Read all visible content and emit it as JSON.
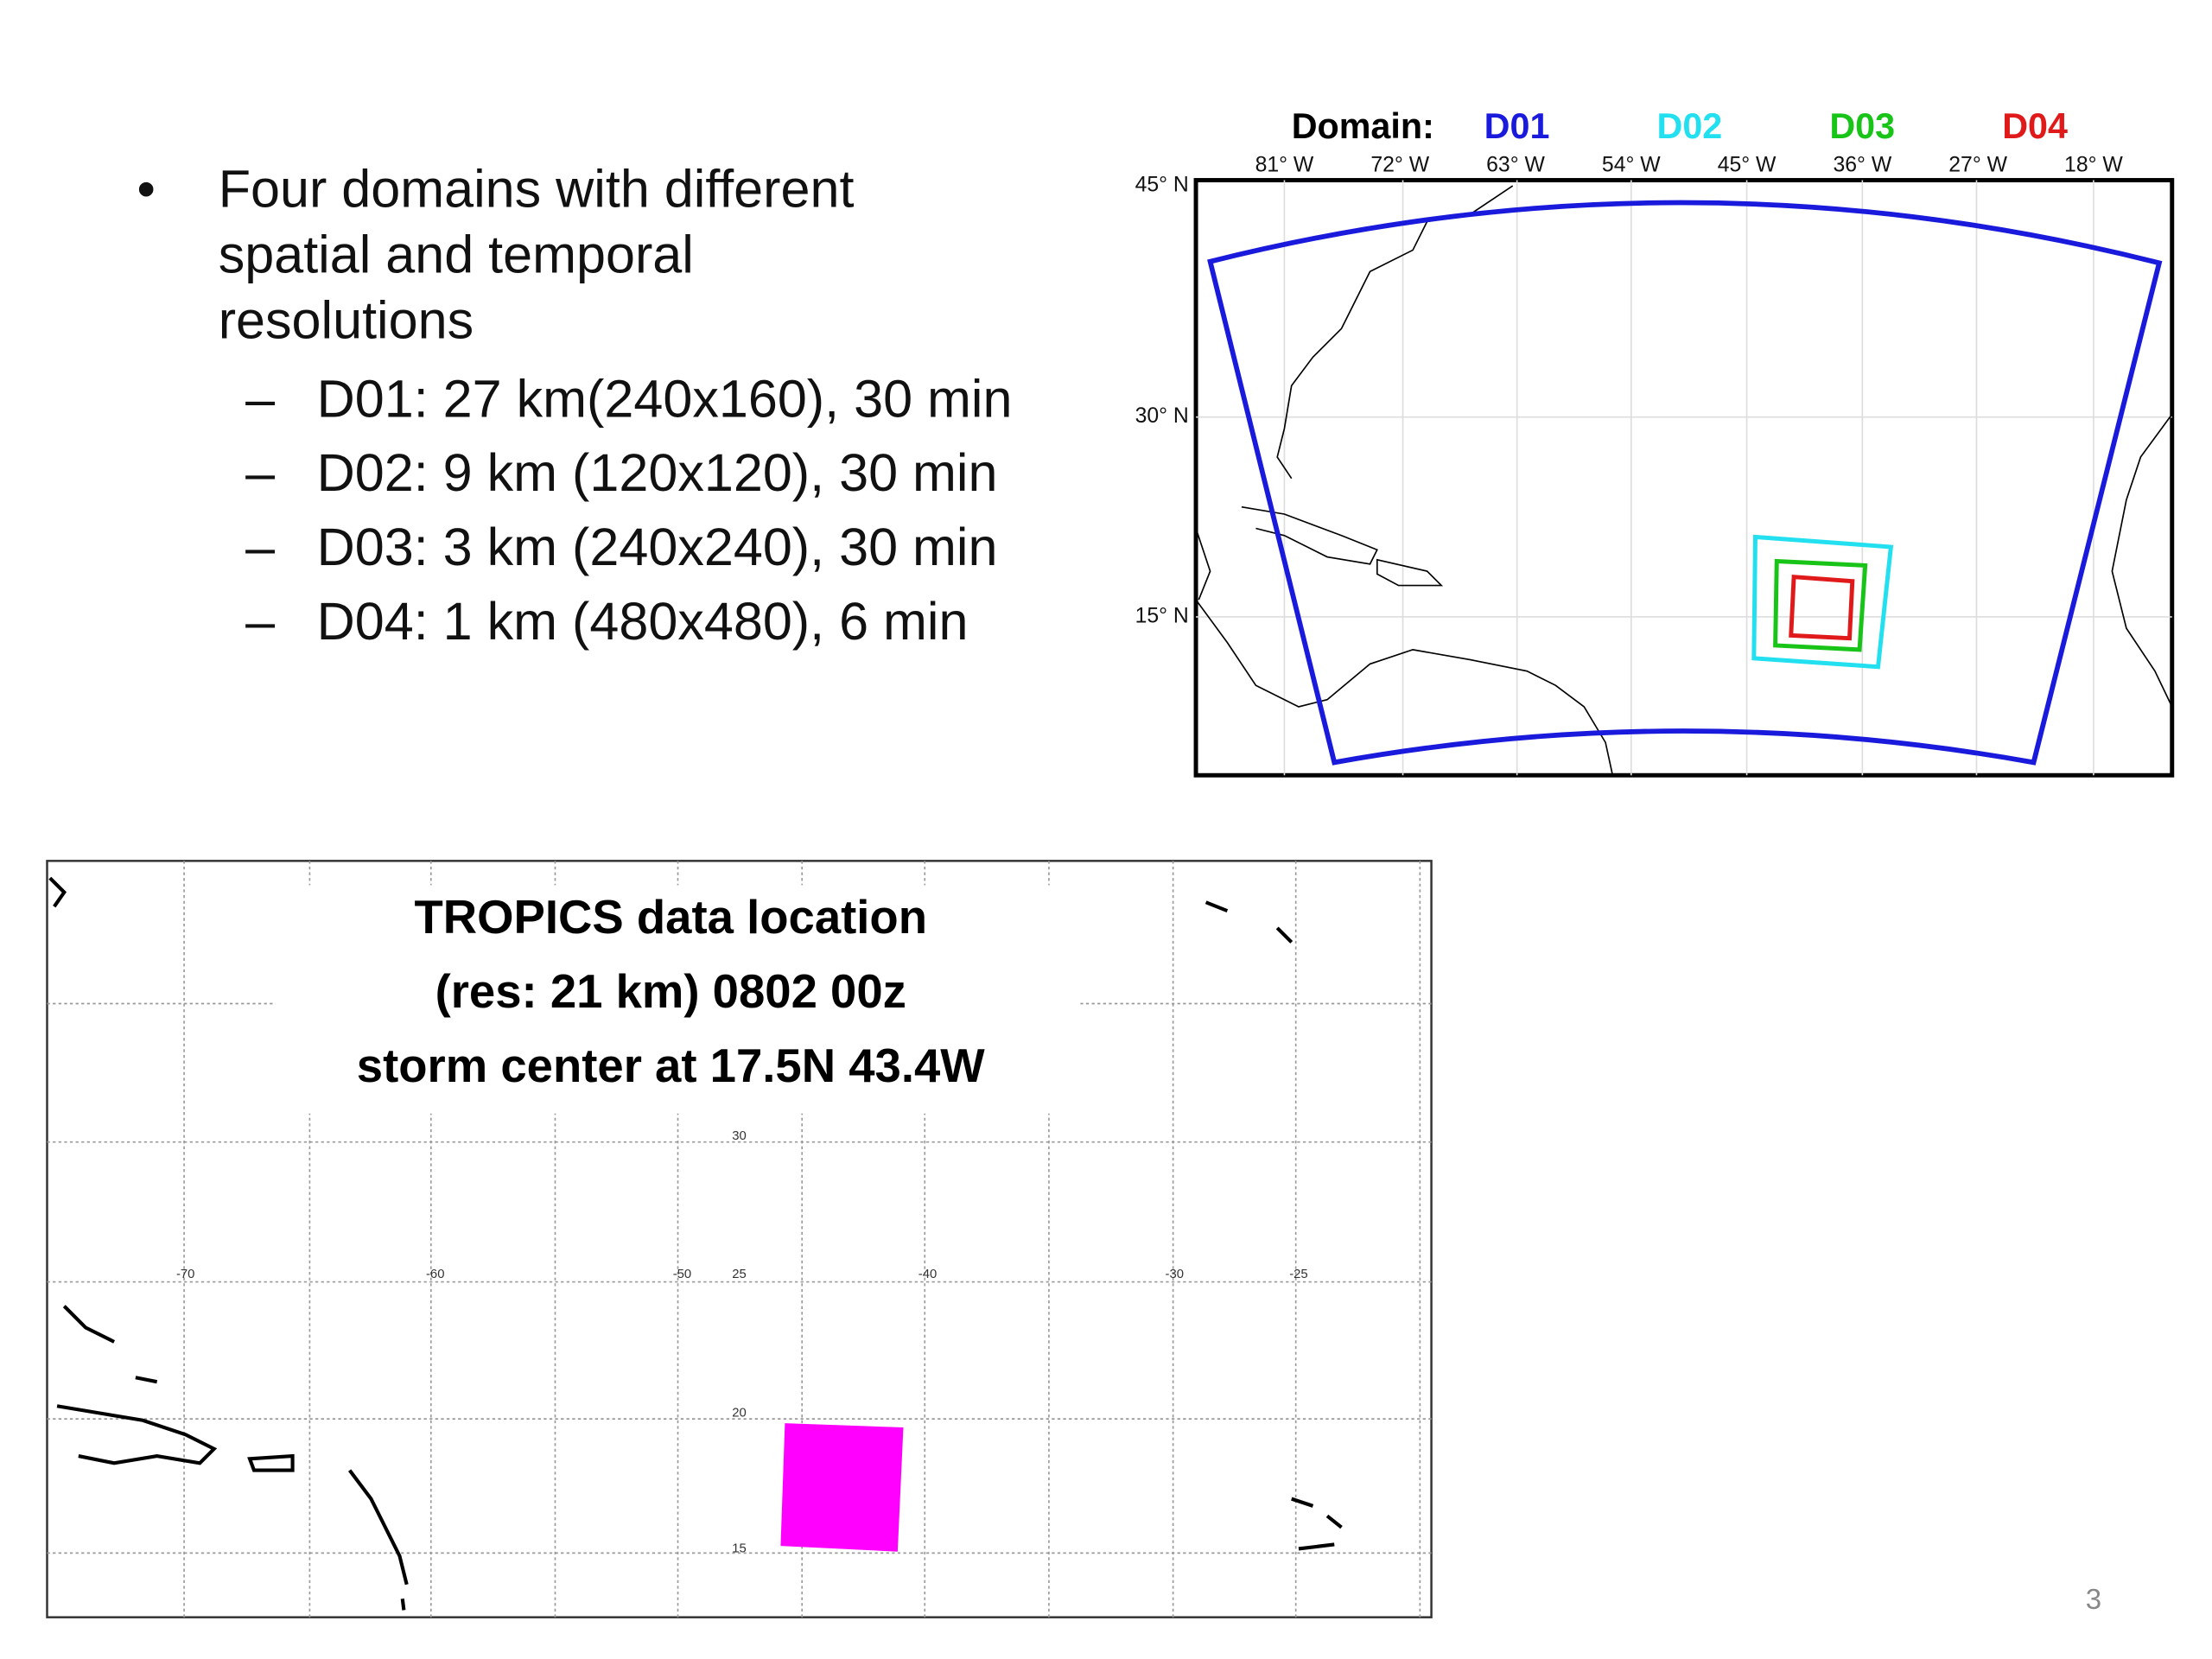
{
  "bullets": {
    "main_lines": [
      "Four domains with different",
      "spatial and temporal",
      "resolutions"
    ],
    "sub": [
      "D01: 27 km(240x160), 30 min",
      "D02: 9 km (120x120), 30 min",
      "D03: 3 km (240x240), 30 min",
      "D04: 1 km (480x480), 6 min"
    ]
  },
  "domain_map": {
    "legend_title": "Domain:",
    "domains": [
      "D01",
      "D02",
      "D03",
      "D04"
    ],
    "lon_labels": [
      "81° W",
      "72° W",
      "63° W",
      "54° W",
      "45° W",
      "36° W",
      "27° W",
      "18° W"
    ],
    "lat_labels": [
      "45° N",
      "30° N",
      "15° N"
    ]
  },
  "tropics_map": {
    "title_lines": [
      "TROPICS data location",
      "(res: 21 km) 0802 00z",
      "storm center at 17.5N  43.4W"
    ],
    "lon_labels": [
      "-70",
      "-60",
      "-50",
      "-40",
      "-30",
      "-25"
    ],
    "lat_labels": [
      "30",
      "25",
      "20",
      "15"
    ]
  },
  "page_number": "3"
}
